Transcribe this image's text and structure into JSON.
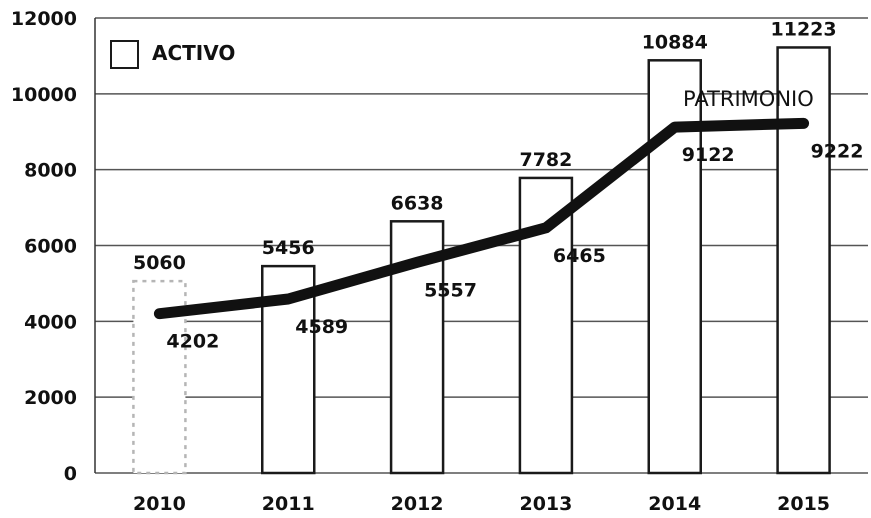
{
  "chart_data": {
    "type": "bar",
    "categories": [
      "2010",
      "2011",
      "2012",
      "2013",
      "2014",
      "2015"
    ],
    "series": [
      {
        "name": "ACTIVO",
        "type": "bar",
        "values": [
          5060,
          5456,
          6638,
          7782,
          10884,
          11223
        ],
        "labels": [
          "5060",
          "5456",
          "6638",
          "7782",
          "10884",
          "11223"
        ]
      },
      {
        "name": "PATRIMONIO",
        "type": "line",
        "values": [
          4202,
          4589,
          5557,
          6465,
          9122,
          9222
        ],
        "labels": [
          "4202",
          "4589",
          "5557",
          "6465",
          "9122",
          "9222"
        ]
      }
    ],
    "y_ticks": [
      "0",
      "2000",
      "4000",
      "6000",
      "8000",
      "10000",
      "12000"
    ],
    "ylim": [
      0,
      12000
    ],
    "grid": true,
    "legend": "top-left",
    "colors": {
      "bar_fill": "#ffffff",
      "bar_stroke": "#1a1a1a",
      "line": "#111111",
      "grid": "#555555"
    }
  }
}
